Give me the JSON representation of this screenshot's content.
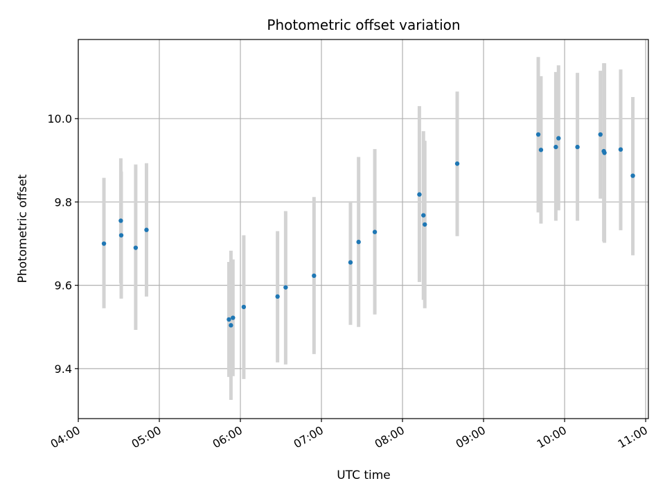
{
  "chart_data": {
    "type": "scatter",
    "title": "Photometric offset variation",
    "xlabel": "UTC time",
    "ylabel": "Photometric offset",
    "x_unit": "minutes",
    "xlim": [
      240,
      662
    ],
    "ylim": [
      9.28,
      10.19
    ],
    "x_ticks": [
      {
        "value": 240,
        "label": "04:00"
      },
      {
        "value": 300,
        "label": "05:00"
      },
      {
        "value": 360,
        "label": "06:00"
      },
      {
        "value": 420,
        "label": "07:00"
      },
      {
        "value": 480,
        "label": "08:00"
      },
      {
        "value": 540,
        "label": "09:00"
      },
      {
        "value": 600,
        "label": "10:00"
      },
      {
        "value": 660,
        "label": "11:00"
      }
    ],
    "y_ticks": [
      {
        "value": 9.4,
        "label": "9.4"
      },
      {
        "value": 9.6,
        "label": "9.6"
      },
      {
        "value": 9.8,
        "label": "9.8"
      },
      {
        "value": 10.0,
        "label": "10.0"
      }
    ],
    "grid": true,
    "legend": "none",
    "colors": {
      "point": "#1f77b4",
      "errorbar": "#d3d3d3",
      "grid": "#b0b0b0"
    },
    "points": [
      {
        "x": 259,
        "y": 9.7,
        "ylo": 9.545,
        "yhi": 9.858
      },
      {
        "x": 271.5,
        "y": 9.755,
        "ylo": 9.605,
        "yhi": 9.905
      },
      {
        "x": 271.8,
        "y": 9.72,
        "ylo": 9.568,
        "yhi": 9.873
      },
      {
        "x": 282.5,
        "y": 9.69,
        "ylo": 9.493,
        "yhi": 9.89
      },
      {
        "x": 290.5,
        "y": 9.733,
        "ylo": 9.573,
        "yhi": 9.893
      },
      {
        "x": 351.5,
        "y": 9.518,
        "ylo": 9.38,
        "yhi": 9.656
      },
      {
        "x": 353.0,
        "y": 9.504,
        "ylo": 9.325,
        "yhi": 9.683
      },
      {
        "x": 354.5,
        "y": 9.522,
        "ylo": 9.382,
        "yhi": 9.662
      },
      {
        "x": 362.5,
        "y": 9.548,
        "ylo": 9.375,
        "yhi": 9.72
      },
      {
        "x": 387.5,
        "y": 9.573,
        "ylo": 9.415,
        "yhi": 9.73
      },
      {
        "x": 393.5,
        "y": 9.595,
        "ylo": 9.41,
        "yhi": 9.778
      },
      {
        "x": 414.5,
        "y": 9.623,
        "ylo": 9.435,
        "yhi": 9.812
      },
      {
        "x": 441.5,
        "y": 9.655,
        "ylo": 9.505,
        "yhi": 9.802
      },
      {
        "x": 447.5,
        "y": 9.704,
        "ylo": 9.5,
        "yhi": 9.908
      },
      {
        "x": 459.5,
        "y": 9.728,
        "ylo": 9.53,
        "yhi": 9.927
      },
      {
        "x": 492.5,
        "y": 9.818,
        "ylo": 9.608,
        "yhi": 10.03
      },
      {
        "x": 495.5,
        "y": 9.768,
        "ylo": 9.565,
        "yhi": 9.97
      },
      {
        "x": 496.5,
        "y": 9.746,
        "ylo": 9.545,
        "yhi": 9.947
      },
      {
        "x": 520.5,
        "y": 9.892,
        "ylo": 9.718,
        "yhi": 10.065
      },
      {
        "x": 580.5,
        "y": 9.962,
        "ylo": 9.775,
        "yhi": 10.148
      },
      {
        "x": 582.5,
        "y": 9.925,
        "ylo": 9.748,
        "yhi": 10.102
      },
      {
        "x": 593.5,
        "y": 9.932,
        "ylo": 9.755,
        "yhi": 10.112
      },
      {
        "x": 595.5,
        "y": 9.953,
        "ylo": 9.78,
        "yhi": 10.128
      },
      {
        "x": 609.5,
        "y": 9.932,
        "ylo": 9.755,
        "yhi": 10.11
      },
      {
        "x": 626.5,
        "y": 9.962,
        "ylo": 9.808,
        "yhi": 10.115
      },
      {
        "x": 629.0,
        "y": 9.922,
        "ylo": 9.705,
        "yhi": 10.133
      },
      {
        "x": 629.5,
        "y": 9.918,
        "ylo": 9.702,
        "yhi": 10.133
      },
      {
        "x": 641.5,
        "y": 9.926,
        "ylo": 9.732,
        "yhi": 10.118
      },
      {
        "x": 650.5,
        "y": 9.863,
        "ylo": 9.672,
        "yhi": 10.052
      }
    ]
  }
}
